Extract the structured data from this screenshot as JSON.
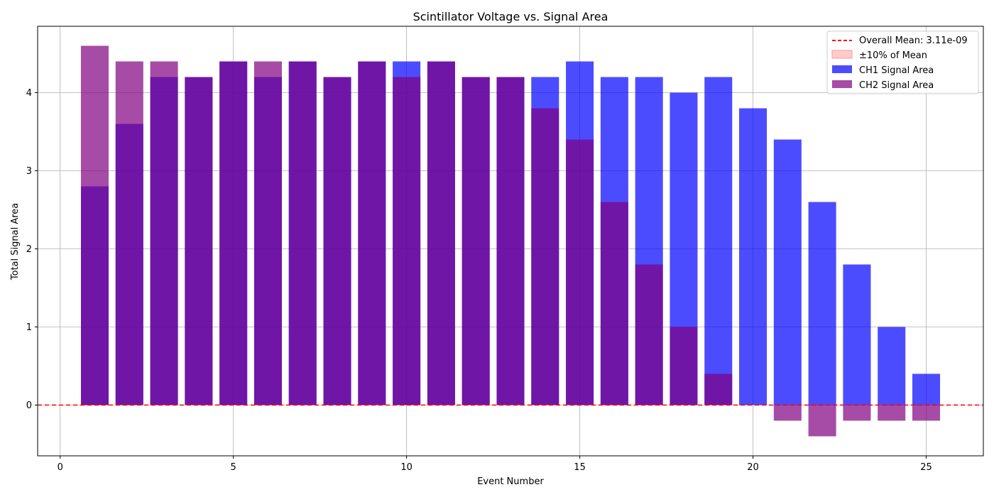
{
  "chart_data": {
    "type": "bar",
    "title": "Scintillator Voltage vs. Signal Area",
    "xlabel": "Event Number",
    "ylabel": "Total Signal Area",
    "xlim": [
      -0.65,
      26.65
    ],
    "ylim": [
      -0.65,
      4.85
    ],
    "x_ticks": [
      0,
      5,
      10,
      15,
      20,
      25
    ],
    "y_ticks": [
      0,
      1,
      2,
      3,
      4
    ],
    "grid": true,
    "legend_position": "top-right",
    "x": [
      1,
      2,
      3,
      4,
      5,
      6,
      7,
      8,
      9,
      10,
      11,
      12,
      13,
      14,
      15,
      16,
      17,
      18,
      19,
      20,
      21,
      22,
      23,
      24,
      25
    ],
    "series": [
      {
        "name": "CH1 Signal Area",
        "color": "#0000ff",
        "opacity": 0.7,
        "values": [
          2.8,
          3.6,
          4.2,
          4.2,
          4.4,
          4.2,
          4.4,
          4.2,
          4.4,
          4.4,
          4.4,
          4.2,
          4.2,
          4.2,
          4.4,
          4.2,
          4.2,
          4.0,
          4.2,
          3.8,
          3.4,
          2.6,
          1.8,
          1.0,
          0.4
        ]
      },
      {
        "name": "CH2 Signal Area",
        "color": "#800080",
        "opacity": 0.7,
        "values": [
          4.6,
          4.4,
          4.4,
          4.2,
          4.4,
          4.4,
          4.4,
          4.2,
          4.4,
          4.2,
          4.4,
          4.2,
          4.2,
          3.8,
          3.4,
          2.6,
          1.8,
          1.0,
          0.4,
          0.0,
          -0.2,
          -0.4,
          -0.2,
          -0.2,
          -0.2
        ]
      }
    ],
    "mean_line": {
      "label": "Overall Mean: 3.11e-09",
      "value": 3.11e-09,
      "color": "#ff0000"
    },
    "band": {
      "label": "±10% of Mean",
      "color": "#ff9999"
    }
  }
}
